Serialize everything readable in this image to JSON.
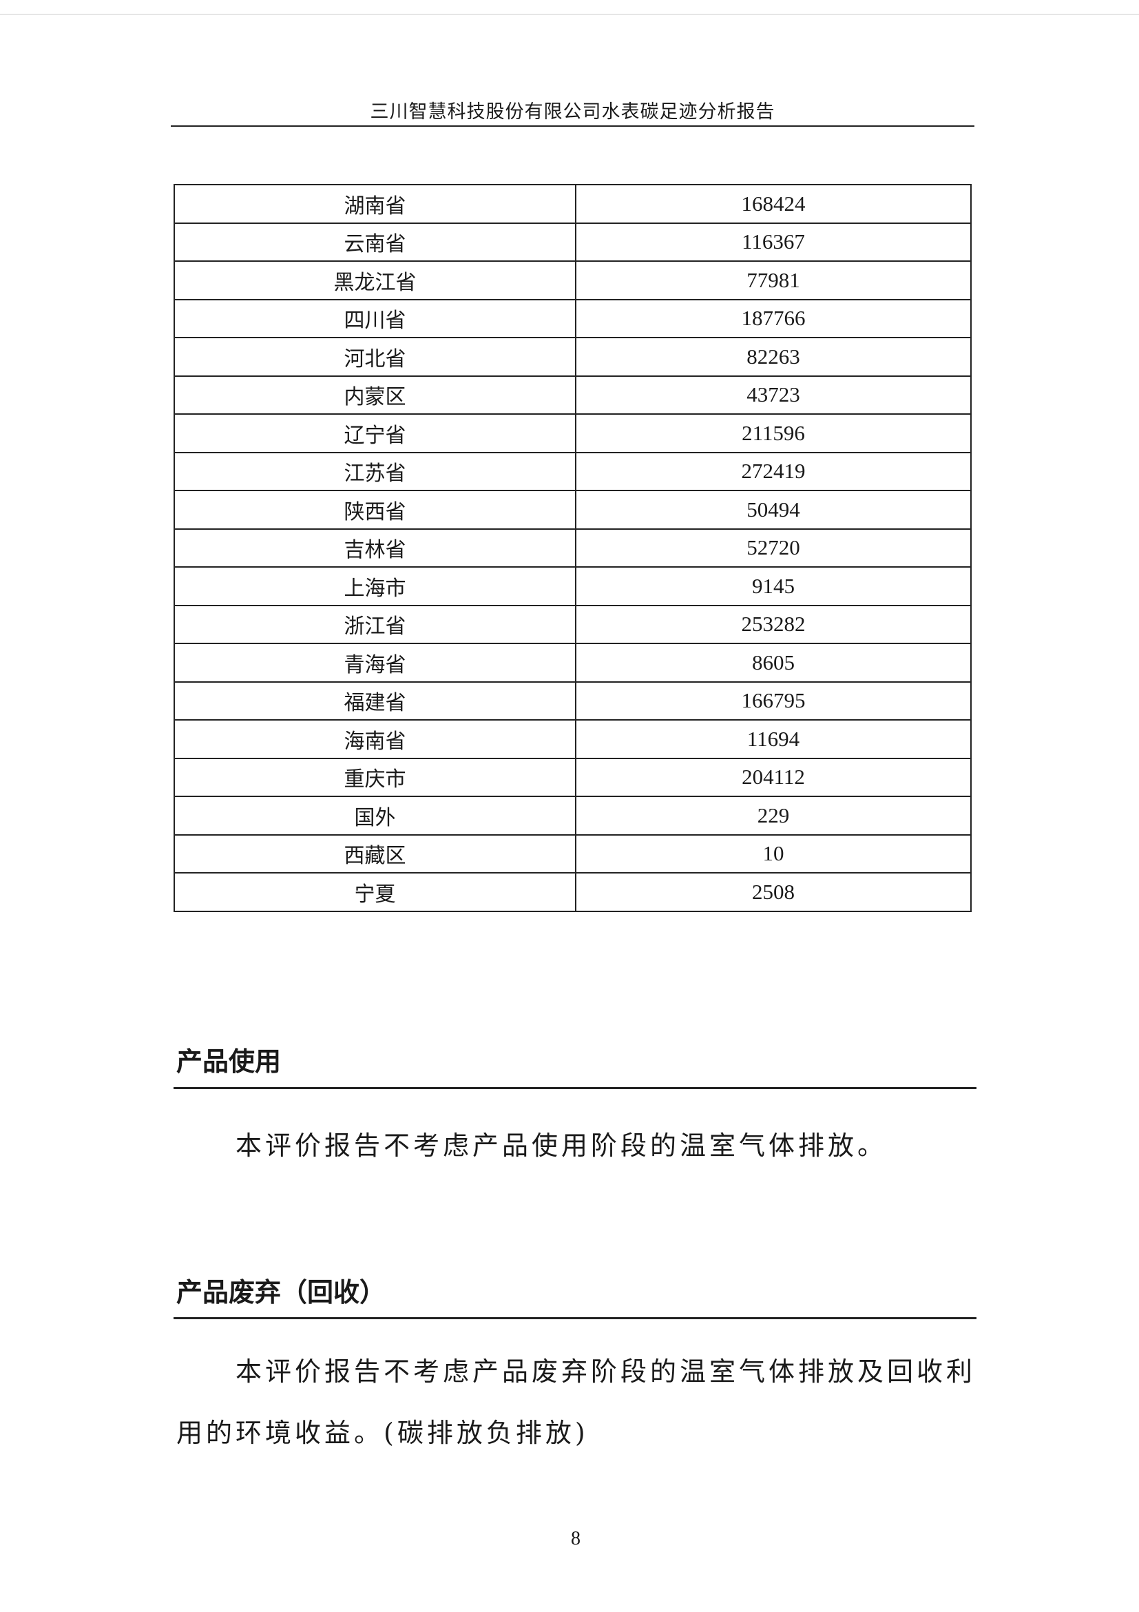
{
  "header": {
    "title": "三川智慧科技股份有限公司水表碳足迹分析报告"
  },
  "table": {
    "rows": [
      {
        "region": "湖南省",
        "value": "168424"
      },
      {
        "region": "云南省",
        "value": "116367"
      },
      {
        "region": "黑龙江省",
        "value": "77981"
      },
      {
        "region": "四川省",
        "value": "187766"
      },
      {
        "region": "河北省",
        "value": "82263"
      },
      {
        "region": "内蒙区",
        "value": "43723"
      },
      {
        "region": "辽宁省",
        "value": "211596"
      },
      {
        "region": "江苏省",
        "value": "272419"
      },
      {
        "region": "陕西省",
        "value": "50494"
      },
      {
        "region": "吉林省",
        "value": "52720"
      },
      {
        "region": "上海市",
        "value": "9145"
      },
      {
        "region": "浙江省",
        "value": "253282"
      },
      {
        "region": "青海省",
        "value": "8605"
      },
      {
        "region": "福建省",
        "value": "166795"
      },
      {
        "region": "海南省",
        "value": "11694"
      },
      {
        "region": "重庆市",
        "value": "204112"
      },
      {
        "region": "国外",
        "value": "229"
      },
      {
        "region": "西藏区",
        "value": "10"
      },
      {
        "region": "宁夏",
        "value": "2508"
      }
    ]
  },
  "sections": [
    {
      "heading": "产品使用",
      "lines": [
        "本评价报告不考虑产品使用阶段的温室气体排放。"
      ]
    },
    {
      "heading": "产品废弃（回收）",
      "lines": [
        "本评价报告不考虑产品废弃阶段的温室气体排放及回收利",
        "用的环境收益。(碳排放负排放)"
      ]
    }
  ],
  "page_number": "8"
}
